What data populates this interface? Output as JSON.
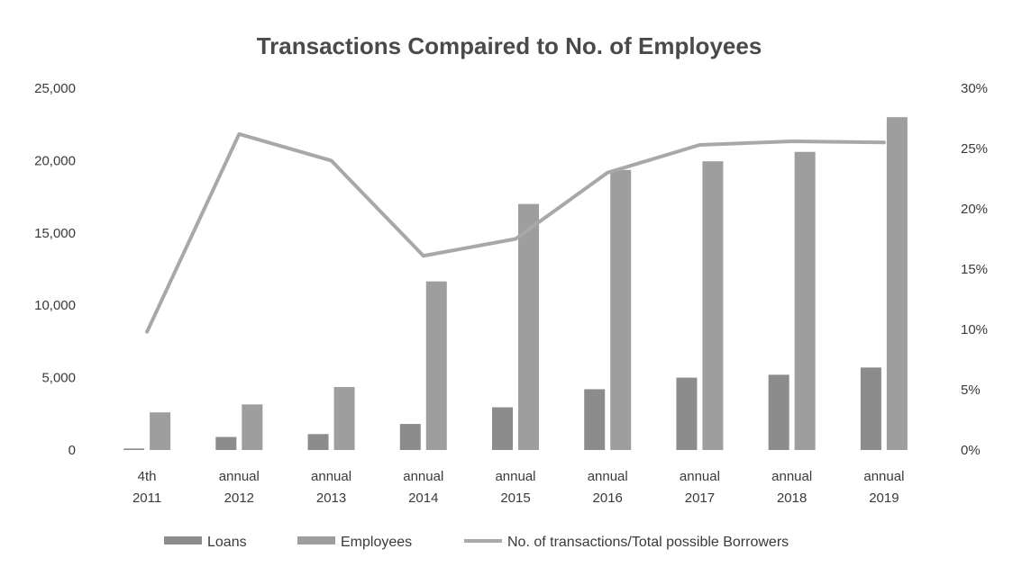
{
  "chart_data": {
    "type": "bar",
    "title": "Transactions Compaired to No. of Employees",
    "categories": [
      [
        "4th",
        "2011"
      ],
      [
        "annual",
        "2012"
      ],
      [
        "annual",
        "2013"
      ],
      [
        "annual",
        "2014"
      ],
      [
        "annual",
        "2015"
      ],
      [
        "annual",
        "2016"
      ],
      [
        "annual",
        "2017"
      ],
      [
        "annual",
        "2018"
      ],
      [
        "annual",
        "2019"
      ]
    ],
    "series": [
      {
        "name": "Loans",
        "kind": "bar",
        "axis": "left",
        "color": "#8c8c8c",
        "values": [
          100,
          900,
          1100,
          1800,
          2950,
          4200,
          5000,
          5200,
          5700
        ]
      },
      {
        "name": "Employees",
        "kind": "bar",
        "axis": "left",
        "color": "#9e9e9e",
        "values": [
          2600,
          3150,
          4350,
          11650,
          17000,
          19350,
          19950,
          20600,
          23000
        ]
      },
      {
        "name": "No. of transactions/Total possible Borrowers",
        "kind": "line",
        "axis": "right",
        "color": "#a8a8a8",
        "values": [
          0.098,
          0.262,
          0.24,
          0.161,
          0.175,
          0.23,
          0.253,
          0.256,
          0.255
        ]
      }
    ],
    "y_left": {
      "min": 0,
      "max": 25000,
      "ticks": [
        "0",
        "5,000",
        "10,000",
        "15,000",
        "20,000",
        "25,000"
      ]
    },
    "y_right": {
      "min": 0,
      "max": 0.3,
      "ticks": [
        "0%",
        "5%",
        "10%",
        "15%",
        "20%",
        "25%",
        "30%"
      ]
    },
    "grid": false,
    "legend_position": "bottom"
  }
}
